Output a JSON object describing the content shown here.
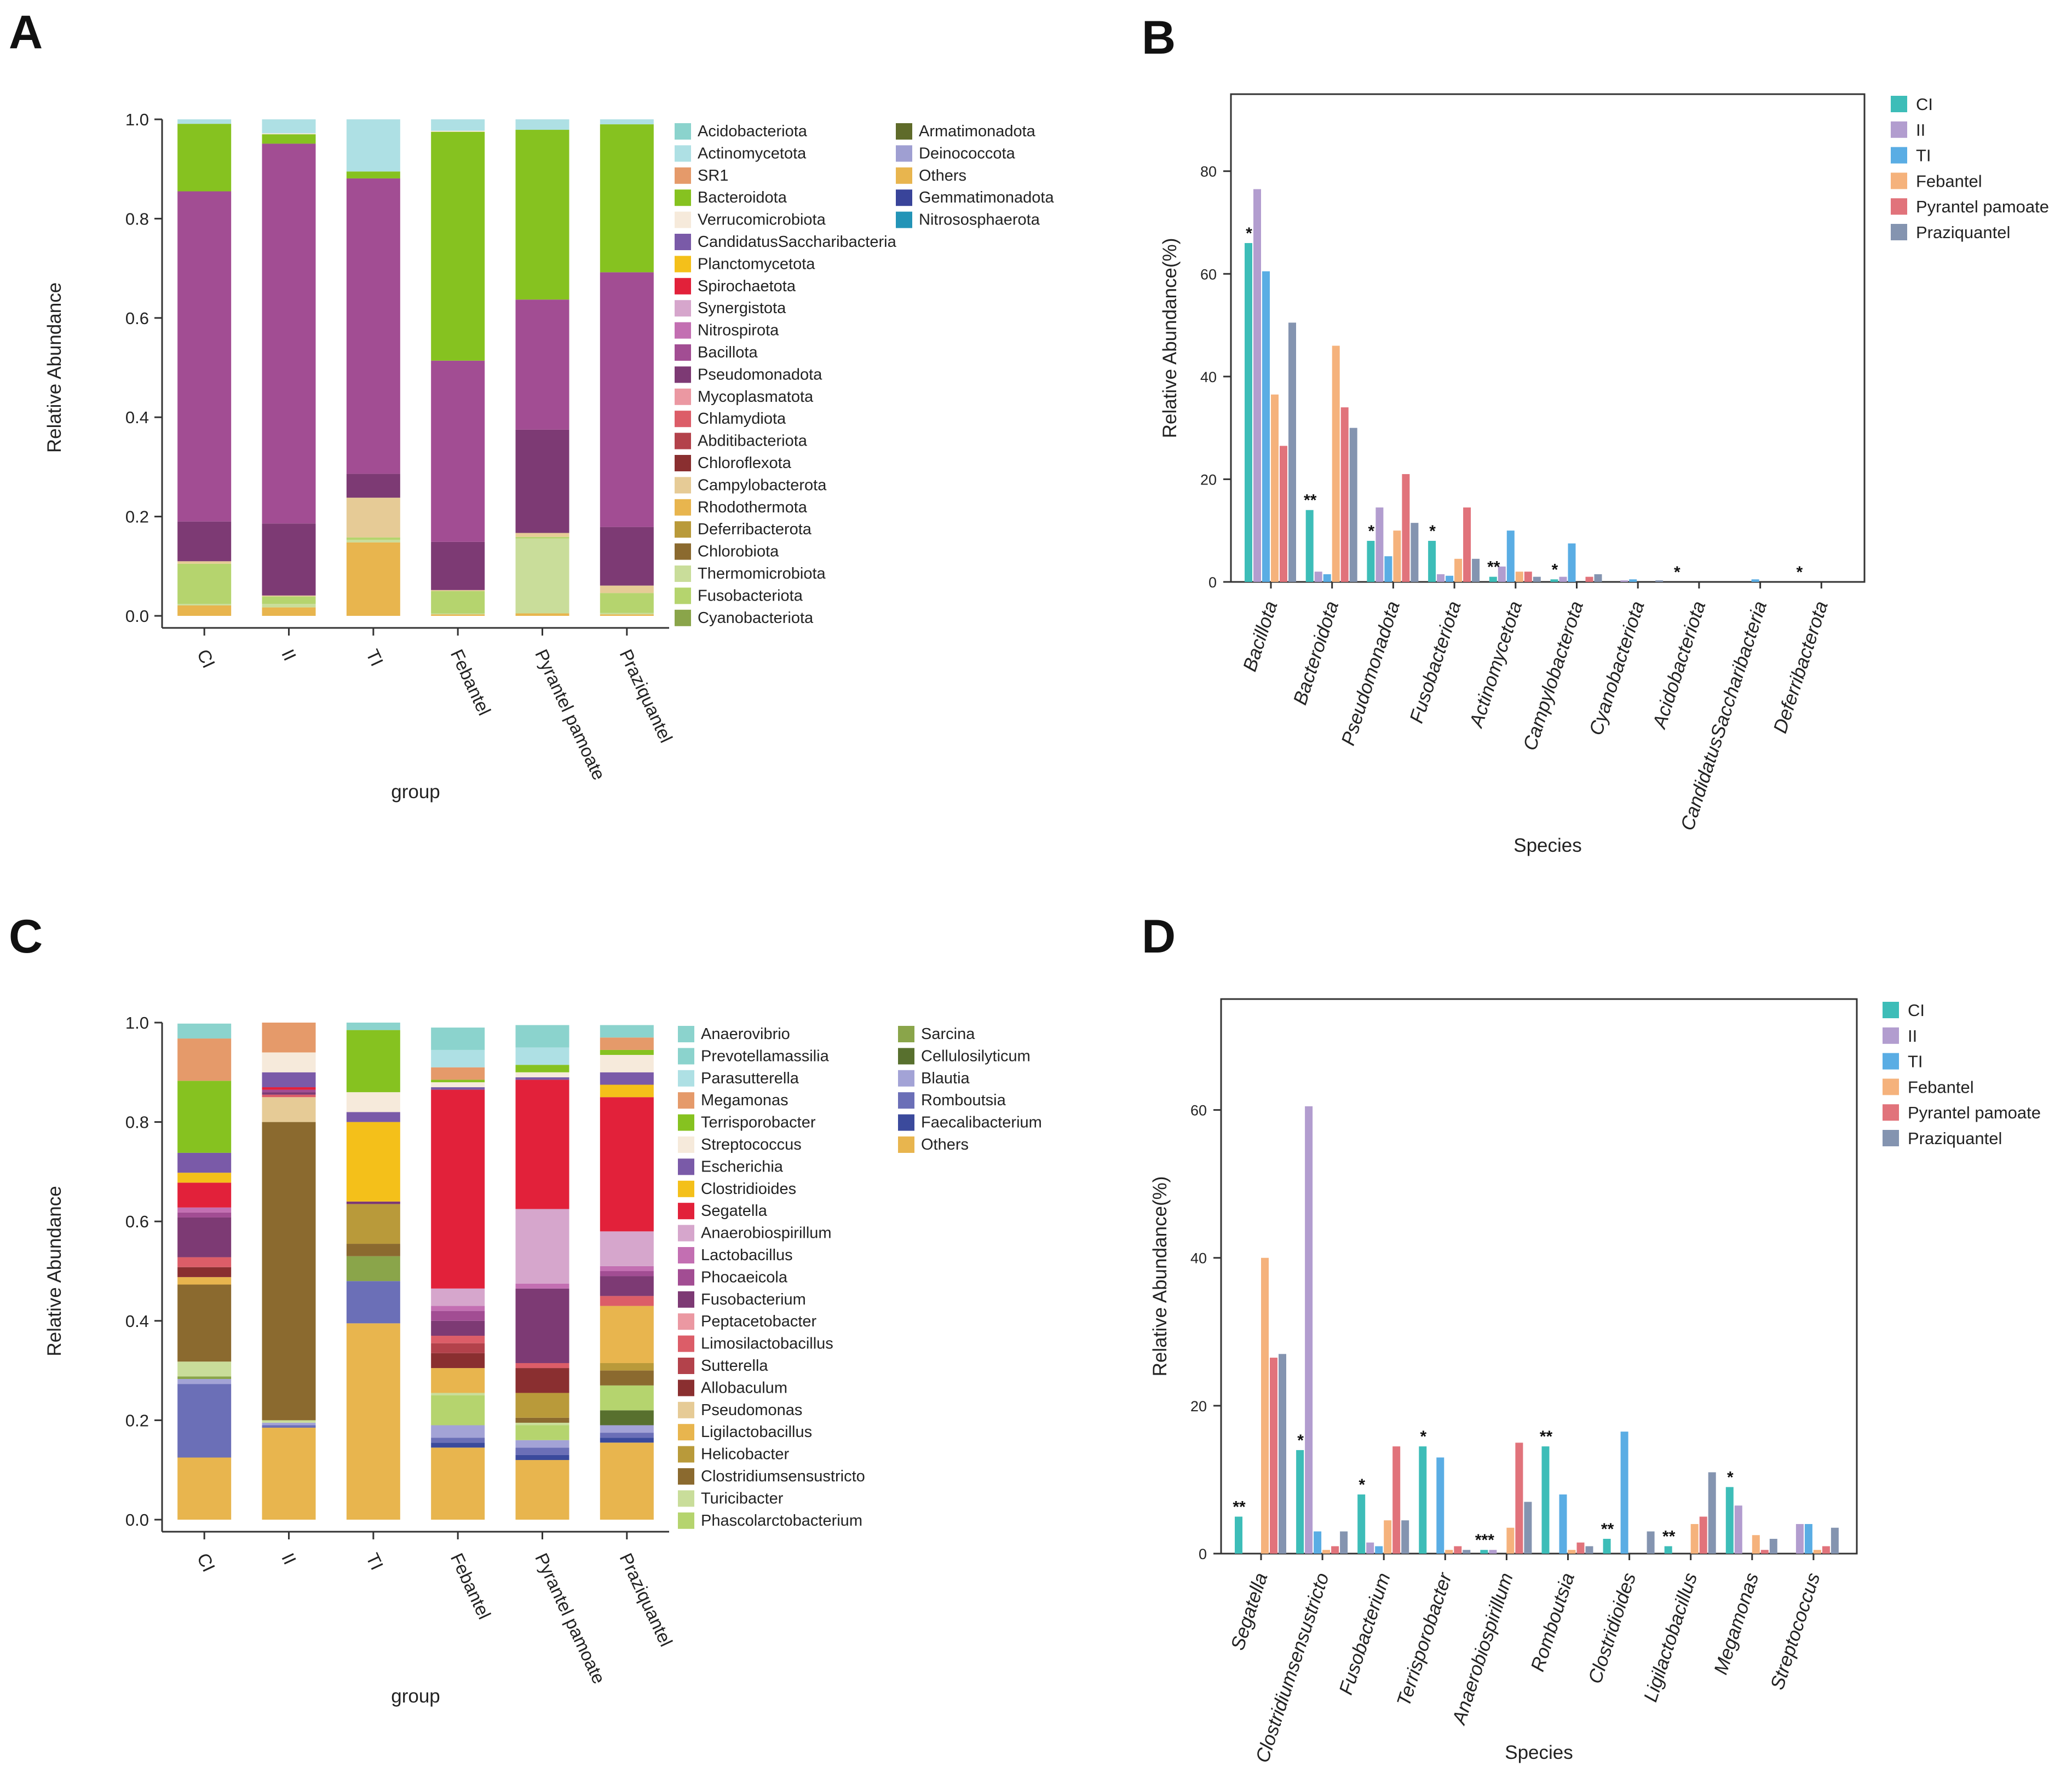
{
  "figure_labels": [
    "A",
    "B",
    "C",
    "D"
  ],
  "chart_data": [
    {
      "panel": "A",
      "type": "bar",
      "stacked": true,
      "xlabel": "group",
      "ylabel": "Relative Abundance",
      "ylim": [
        0,
        1
      ],
      "yticks": [
        "0.0",
        "0.2",
        "0.4",
        "0.6",
        "0.8",
        "1.0"
      ],
      "categories": [
        "CI",
        "II",
        "TI",
        "Febantel",
        "Pyrantel pamoate",
        "Praziquantel"
      ],
      "legend_position": "right",
      "series": [
        {
          "name": "Others",
          "color": "#e8b54e",
          "values": [
            0.021,
            0.017,
            0.148,
            0.003,
            0.005,
            0.003
          ]
        },
        {
          "name": "Thermomicrobiota",
          "color": "#c9dd9a",
          "values": [
            0.003,
            0.007,
            0.005,
            0.002,
            0.151,
            0.003
          ]
        },
        {
          "name": "Fusobacteriota",
          "color": "#b5d46e",
          "values": [
            0.081,
            0.015,
            0.005,
            0.045,
            0.003,
            0.04
          ]
        },
        {
          "name": "Campylobacterota",
          "color": "#e6cb96",
          "values": [
            0.005,
            0.002,
            0.08,
            0.002,
            0.008,
            0.015
          ]
        },
        {
          "name": "Pseudomonadota",
          "color": "#7d3a74",
          "values": [
            0.08,
            0.145,
            0.048,
            0.097,
            0.208,
            0.118
          ]
        },
        {
          "name": "Bacillota",
          "color": "#a24d93",
          "values": [
            0.665,
            0.765,
            0.595,
            0.365,
            0.262,
            0.513
          ]
        },
        {
          "name": "Bacteroidota",
          "color": "#86c220",
          "values": [
            0.136,
            0.019,
            0.014,
            0.461,
            0.342,
            0.298
          ]
        },
        {
          "name": "Verrucomicrobiota",
          "color": "#f6eadb",
          "values": [
            0.0,
            0.002,
            0.0,
            0.002,
            0.0,
            0.0
          ]
        },
        {
          "name": "Actinomycetota",
          "color": "#aee0e4",
          "values": [
            0.009,
            0.028,
            0.105,
            0.023,
            0.021,
            0.01
          ]
        }
      ],
      "legend": [
        {
          "name": "Acidobacteriota",
          "color": "#8bd3cd"
        },
        {
          "name": "Actinomycetota",
          "color": "#aee0e4"
        },
        {
          "name": "SR1",
          "color": "#e59a6a"
        },
        {
          "name": "Bacteroidota",
          "color": "#86c220"
        },
        {
          "name": "Verrucomicrobiota",
          "color": "#f6eadb"
        },
        {
          "name": "CandidatusSaccharibacteria",
          "color": "#7a5aa8"
        },
        {
          "name": "Planctomycetota",
          "color": "#f4c01a"
        },
        {
          "name": "Spirochaetota",
          "color": "#e2213a"
        },
        {
          "name": "Synergistota",
          "color": "#d6a6cc"
        },
        {
          "name": "Nitrospirota",
          "color": "#c36fb2"
        },
        {
          "name": "Bacillota",
          "color": "#a24d93"
        },
        {
          "name": "Pseudomonadota",
          "color": "#7d3a74"
        },
        {
          "name": "Mycoplasmatota",
          "color": "#eb98a2"
        },
        {
          "name": "Chlamydiota",
          "color": "#dc5d68"
        },
        {
          "name": "Abditibacteriota",
          "color": "#b3424b"
        },
        {
          "name": "Chloroflexota",
          "color": "#8a2f30"
        },
        {
          "name": "Campylobacterota",
          "color": "#e6cb96"
        },
        {
          "name": "Rhodothermota",
          "color": "#e8b54e"
        },
        {
          "name": "Deferribacterota",
          "color": "#b99a3a"
        },
        {
          "name": "Chlorobiota",
          "color": "#8b6a2f"
        },
        {
          "name": "Thermomicrobiota",
          "color": "#c9dd9a"
        },
        {
          "name": "Fusobacteriota",
          "color": "#b5d46e"
        },
        {
          "name": "Cyanobacteriota",
          "color": "#8aa54a"
        },
        {
          "name": "Armatimonadota",
          "color": "#5f6b2a"
        },
        {
          "name": "Deinococcota",
          "color": "#9f9fd2"
        },
        {
          "name": "Others",
          "color": "#e8b54e"
        },
        {
          "name": "Gemmatimonadota",
          "color": "#39449a"
        },
        {
          "name": "Nitrososphaerota",
          "color": "#2394b7"
        }
      ]
    },
    {
      "panel": "B",
      "type": "bar",
      "grouped": true,
      "xlabel": "Species",
      "ylabel": "Relative Abundance(%)",
      "ylim": [
        0,
        95
      ],
      "yticks": [
        0,
        20,
        40,
        60,
        80
      ],
      "legend_position": "top-right",
      "categories": [
        "Bacillota",
        "Bacteroidota",
        "Pseudomonadota",
        "Fusobacteriota",
        "Actinomycetota",
        "Campylobacterota",
        "Cyanobacteriota",
        "Acidobacteriota",
        "CandidatusSaccharibacteria",
        "Deferribacterota"
      ],
      "series": [
        {
          "name": "CI",
          "color": "#3dbdb8",
          "values": [
            66,
            14,
            8,
            8,
            1,
            0.5,
            0,
            0,
            0,
            0
          ]
        },
        {
          "name": "II",
          "color": "#b29dcf",
          "values": [
            76.5,
            2,
            14.5,
            1.5,
            3,
            1,
            0.3,
            0,
            0,
            0
          ]
        },
        {
          "name": "TI",
          "color": "#5aade4",
          "values": [
            60.5,
            1.5,
            5,
            1.2,
            10,
            7.5,
            0.5,
            0,
            0.5,
            0
          ]
        },
        {
          "name": "Febantel",
          "color": "#f5b27c",
          "values": [
            36.5,
            46,
            10,
            4.5,
            2,
            0,
            0,
            0,
            0,
            0
          ]
        },
        {
          "name": "Pyrantel pamoate",
          "color": "#e1737b",
          "values": [
            26.5,
            34,
            21,
            14.5,
            2,
            1,
            0,
            0,
            0,
            0
          ]
        },
        {
          "name": "Praziquantel",
          "color": "#8494b0",
          "values": [
            50.5,
            30,
            11.5,
            4.5,
            1,
            1.5,
            0.3,
            0,
            0,
            0
          ]
        }
      ],
      "annotations": [
        "*",
        "**",
        "*",
        "*",
        "**",
        "*",
        "",
        "*",
        "",
        "*"
      ]
    },
    {
      "panel": "C",
      "type": "bar",
      "stacked": true,
      "xlabel": "group",
      "ylabel": "Relative Abundance",
      "ylim": [
        0,
        1
      ],
      "yticks": [
        "0.0",
        "0.2",
        "0.4",
        "0.6",
        "0.8",
        "1.0"
      ],
      "categories": [
        "CI",
        "II",
        "TI",
        "Febantel",
        "Pyrantel pamoate",
        "Praziquantel"
      ],
      "legend_position": "right",
      "series": [
        {
          "name": "Others",
          "color": "#e8b54e",
          "values": [
            0.125,
            0.185,
            0.395,
            0.145,
            0.12,
            0.155
          ]
        },
        {
          "name": "Faecalibacterium",
          "color": "#3b4a9c",
          "values": [
            0.0,
            0.0,
            0.0,
            0.01,
            0.01,
            0.01
          ]
        },
        {
          "name": "Romboutsia",
          "color": "#6b6fb7",
          "values": [
            0.148,
            0.005,
            0.085,
            0.01,
            0.015,
            0.01
          ]
        },
        {
          "name": "Blautia",
          "color": "#a3a3d6",
          "values": [
            0.01,
            0.005,
            0.0,
            0.025,
            0.015,
            0.015
          ]
        },
        {
          "name": "Cellulosilyticum",
          "color": "#58702e",
          "values": [
            0.0,
            0.0,
            0.0,
            0.0,
            0.0,
            0.03
          ]
        },
        {
          "name": "Sarcina",
          "color": "#8aa54a",
          "values": [
            0.005,
            0.0,
            0.05,
            0.0,
            0.0,
            0.0
          ]
        },
        {
          "name": "Phascolarctobacterium",
          "color": "#b5d46e",
          "values": [
            0.0,
            0.0,
            0.0,
            0.06,
            0.03,
            0.05
          ]
        },
        {
          "name": "Turicibacter",
          "color": "#c9dd9a",
          "values": [
            0.03,
            0.005,
            0.0,
            0.005,
            0.005,
            0.0
          ]
        },
        {
          "name": "Clostridiumsensustricto",
          "color": "#8b6a2f",
          "values": [
            0.155,
            0.6,
            0.025,
            0.0,
            0.01,
            0.03
          ]
        },
        {
          "name": "Helicobacter",
          "color": "#b99a3a",
          "values": [
            0.0,
            0.0,
            0.08,
            0.0,
            0.05,
            0.015
          ]
        },
        {
          "name": "Ligilactobacillus",
          "color": "#e8b54e",
          "values": [
            0.015,
            0.0,
            0.0,
            0.05,
            0.0,
            0.115
          ]
        },
        {
          "name": "Pseudomonas",
          "color": "#e6cb96",
          "values": [
            0.0,
            0.05,
            0.0,
            0.0,
            0.0,
            0.0
          ]
        },
        {
          "name": "Allobaculum",
          "color": "#8a2f30",
          "values": [
            0.02,
            0.0,
            0.0,
            0.03,
            0.05,
            0.0
          ]
        },
        {
          "name": "Sutterella",
          "color": "#b3424b",
          "values": [
            0.0,
            0.0,
            0.0,
            0.02,
            0.0,
            0.0
          ]
        },
        {
          "name": "Limosilactobacillus",
          "color": "#dc5d68",
          "values": [
            0.02,
            0.005,
            0.0,
            0.015,
            0.01,
            0.02
          ]
        },
        {
          "name": "Fusobacterium",
          "color": "#7d3a74",
          "values": [
            0.08,
            0.005,
            0.005,
            0.03,
            0.15,
            0.04
          ]
        },
        {
          "name": "Phocaeicola",
          "color": "#a24d93",
          "values": [
            0.01,
            0.005,
            0.0,
            0.02,
            0.0,
            0.01
          ]
        },
        {
          "name": "Lactobacillus",
          "color": "#c36fb2",
          "values": [
            0.01,
            0.0,
            0.0,
            0.01,
            0.01,
            0.01
          ]
        },
        {
          "name": "Anaerobiospirillum",
          "color": "#d6a6cc",
          "values": [
            0.0,
            0.0,
            0.0,
            0.035,
            0.15,
            0.07
          ]
        },
        {
          "name": "Segatella",
          "color": "#e2213a",
          "values": [
            0.05,
            0.005,
            0.0,
            0.4,
            0.26,
            0.27
          ]
        },
        {
          "name": "Clostridioides",
          "color": "#f4c01a",
          "values": [
            0.02,
            0.0,
            0.16,
            0.0,
            0.0,
            0.025
          ]
        },
        {
          "name": "Escherichia",
          "color": "#7a5aa8",
          "values": [
            0.04,
            0.03,
            0.02,
            0.005,
            0.005,
            0.025
          ]
        },
        {
          "name": "Streptococcus",
          "color": "#f6eadb",
          "values": [
            0.0,
            0.04,
            0.04,
            0.01,
            0.01,
            0.035
          ]
        },
        {
          "name": "Terrisporobacter",
          "color": "#86c220",
          "values": [
            0.145,
            0.0,
            0.125,
            0.005,
            0.015,
            0.01
          ]
        },
        {
          "name": "Megamonas",
          "color": "#e59a6a",
          "values": [
            0.085,
            0.06,
            0.0,
            0.025,
            0.0,
            0.025
          ]
        },
        {
          "name": "Parasutterella",
          "color": "#aee0e4",
          "values": [
            0.0,
            0.0,
            0.0,
            0.035,
            0.035,
            0.0
          ]
        },
        {
          "name": "Prevotellamassilia",
          "color": "#8bd3cd",
          "values": [
            0.03,
            0.0,
            0.015,
            0.045,
            0.045,
            0.025
          ]
        }
      ],
      "legend": [
        {
          "name": "Anaerovibrio",
          "color": "#8bd3cd"
        },
        {
          "name": "Prevotellamassilia",
          "color": "#8bd3cd"
        },
        {
          "name": "Parasutterella",
          "color": "#aee0e4"
        },
        {
          "name": "Megamonas",
          "color": "#e59a6a"
        },
        {
          "name": "Terrisporobacter",
          "color": "#86c220"
        },
        {
          "name": "Streptococcus",
          "color": "#f6eadb"
        },
        {
          "name": "Escherichia",
          "color": "#7a5aa8"
        },
        {
          "name": "Clostridioides",
          "color": "#f4c01a"
        },
        {
          "name": "Segatella",
          "color": "#e2213a"
        },
        {
          "name": "Anaerobiospirillum",
          "color": "#d6a6cc"
        },
        {
          "name": "Lactobacillus",
          "color": "#c36fb2"
        },
        {
          "name": "Phocaeicola",
          "color": "#a24d93"
        },
        {
          "name": "Fusobacterium",
          "color": "#7d3a74"
        },
        {
          "name": "Peptacetobacter",
          "color": "#eb98a2"
        },
        {
          "name": "Limosilactobacillus",
          "color": "#dc5d68"
        },
        {
          "name": "Sutterella",
          "color": "#b3424b"
        },
        {
          "name": "Allobaculum",
          "color": "#8a2f30"
        },
        {
          "name": "Pseudomonas",
          "color": "#e6cb96"
        },
        {
          "name": "Ligilactobacillus",
          "color": "#e8b54e"
        },
        {
          "name": "Helicobacter",
          "color": "#b99a3a"
        },
        {
          "name": "Clostridiumsensustricto",
          "color": "#8b6a2f"
        },
        {
          "name": "Turicibacter",
          "color": "#c9dd9a"
        },
        {
          "name": "Phascolarctobacterium",
          "color": "#b5d46e"
        },
        {
          "name": "Sarcina",
          "color": "#8aa54a"
        },
        {
          "name": "Cellulosilyticum",
          "color": "#58702e"
        },
        {
          "name": "Blautia",
          "color": "#a3a3d6"
        },
        {
          "name": "Romboutsia",
          "color": "#6b6fb7"
        },
        {
          "name": "Faecalibacterium",
          "color": "#3b4a9c"
        },
        {
          "name": "Others",
          "color": "#e8b54e"
        }
      ]
    },
    {
      "panel": "D",
      "type": "bar",
      "grouped": true,
      "xlabel": "Species",
      "ylabel": "Relative Abundance(%)",
      "ylim": [
        0,
        75
      ],
      "yticks": [
        0,
        20,
        40,
        60
      ],
      "legend_position": "top-right",
      "categories": [
        "Segatella",
        "Clostridiumsensustricto",
        "Fusobacterium",
        "Terrisporobacter",
        "Anaerobiospirillum",
        "Romboutsia",
        "Clostridioides",
        "Ligilactobacillus",
        "Megamonas",
        "Streptococcus"
      ],
      "series": [
        {
          "name": "CI",
          "color": "#3dbdb8",
          "values": [
            5,
            14,
            8,
            14.5,
            0.5,
            14.5,
            2,
            1,
            9,
            0
          ]
        },
        {
          "name": "II",
          "color": "#b29dcf",
          "values": [
            0,
            60.5,
            1.5,
            0,
            0.5,
            0,
            0,
            0,
            6.5,
            4
          ]
        },
        {
          "name": "TI",
          "color": "#5aade4",
          "values": [
            0,
            3,
            1,
            13,
            0,
            8,
            16.5,
            0,
            0,
            4
          ]
        },
        {
          "name": "Febantel",
          "color": "#f5b27c",
          "values": [
            40,
            0.5,
            4.5,
            0.5,
            3.5,
            0.5,
            0,
            4,
            2.5,
            0.5
          ]
        },
        {
          "name": "Pyrantel pamoate",
          "color": "#e1737b",
          "values": [
            26.5,
            1,
            14.5,
            1,
            15,
            1.5,
            0,
            5,
            0.5,
            1
          ]
        },
        {
          "name": "Praziquantel",
          "color": "#8494b0",
          "values": [
            27,
            3,
            4.5,
            0.5,
            7,
            1,
            3,
            11,
            2,
            3.5
          ]
        }
      ],
      "annotations": [
        "**",
        "*",
        "*",
        "*",
        "***",
        "**",
        "**",
        "**",
        "*",
        ""
      ]
    }
  ]
}
